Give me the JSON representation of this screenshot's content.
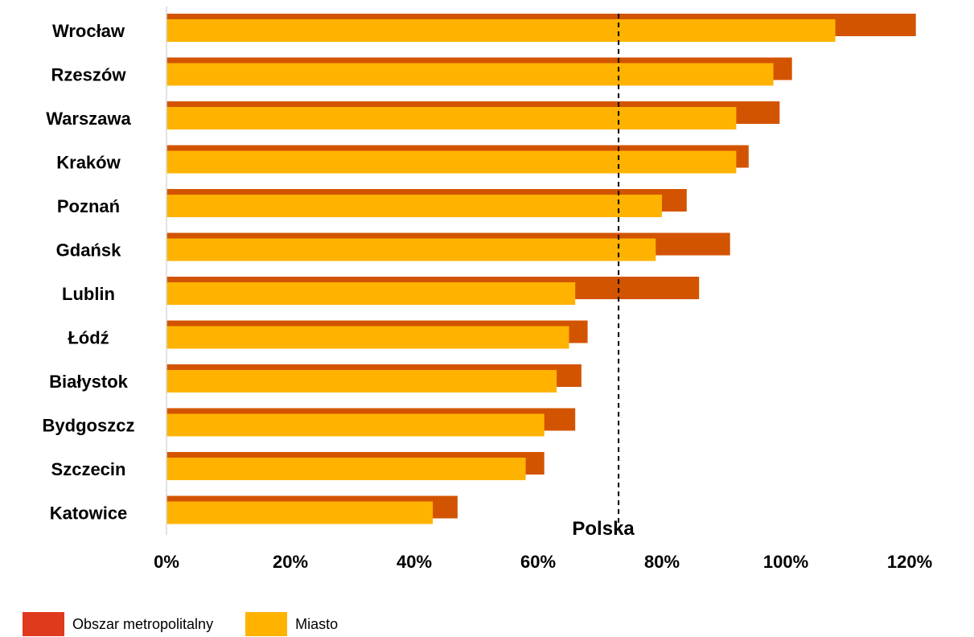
{
  "chart_data": {
    "type": "bar",
    "orientation": "horizontal",
    "categories": [
      "Wrocław",
      "Rzeszów",
      "Warszawa",
      "Kraków",
      "Poznań",
      "Gdańsk",
      "Lublin",
      "Łódź",
      "Białystok",
      "Bydgoszcz",
      "Szczecin",
      "Katowice"
    ],
    "series": [
      {
        "name": "Obszar metropolitalny",
        "color": "#D35400",
        "legend_color": "#E03A1E",
        "values": [
          121,
          101,
          99,
          94,
          84,
          91,
          86,
          68,
          67,
          66,
          61,
          47
        ]
      },
      {
        "name": "Miasto",
        "color": "#FFB300",
        "values": [
          108,
          98,
          92,
          92,
          80,
          79,
          66,
          65,
          63,
          61,
          58,
          43
        ]
      }
    ],
    "xlim": [
      0,
      120
    ],
    "xticks": [
      "0%",
      "20%",
      "40%",
      "60%",
      "80%",
      "100%",
      "120%"
    ],
    "xtick_values": [
      0,
      20,
      40,
      60,
      80,
      100,
      120
    ],
    "reference_line": {
      "label": "Polska",
      "value": 73,
      "style": "dashed"
    },
    "legend_position": "bottom-left"
  }
}
